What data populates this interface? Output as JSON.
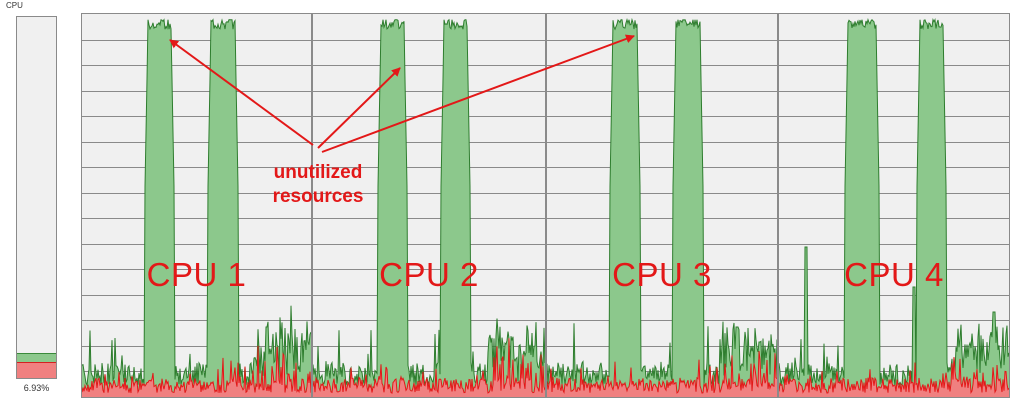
{
  "header": {
    "title": "CPU"
  },
  "overall": {
    "value_text": "6.93%",
    "user_fraction": 0.0693,
    "total_fraction": 0.09
  },
  "panels": [
    {
      "label": "CPU 1"
    },
    {
      "label": "CPU 2"
    },
    {
      "label": "CPU 3"
    },
    {
      "label": "CPU 4"
    }
  ],
  "annotation": {
    "line1": "unutilized",
    "line2": "resources"
  },
  "colors": {
    "background": "#f0f0f0",
    "grid": "#8a8a8a",
    "total_fill": "#8cc88c",
    "total_line": "#2e7d2e",
    "kernel_fill": "#f08080",
    "kernel_line": "#e31818",
    "label": "#e31818"
  }
}
